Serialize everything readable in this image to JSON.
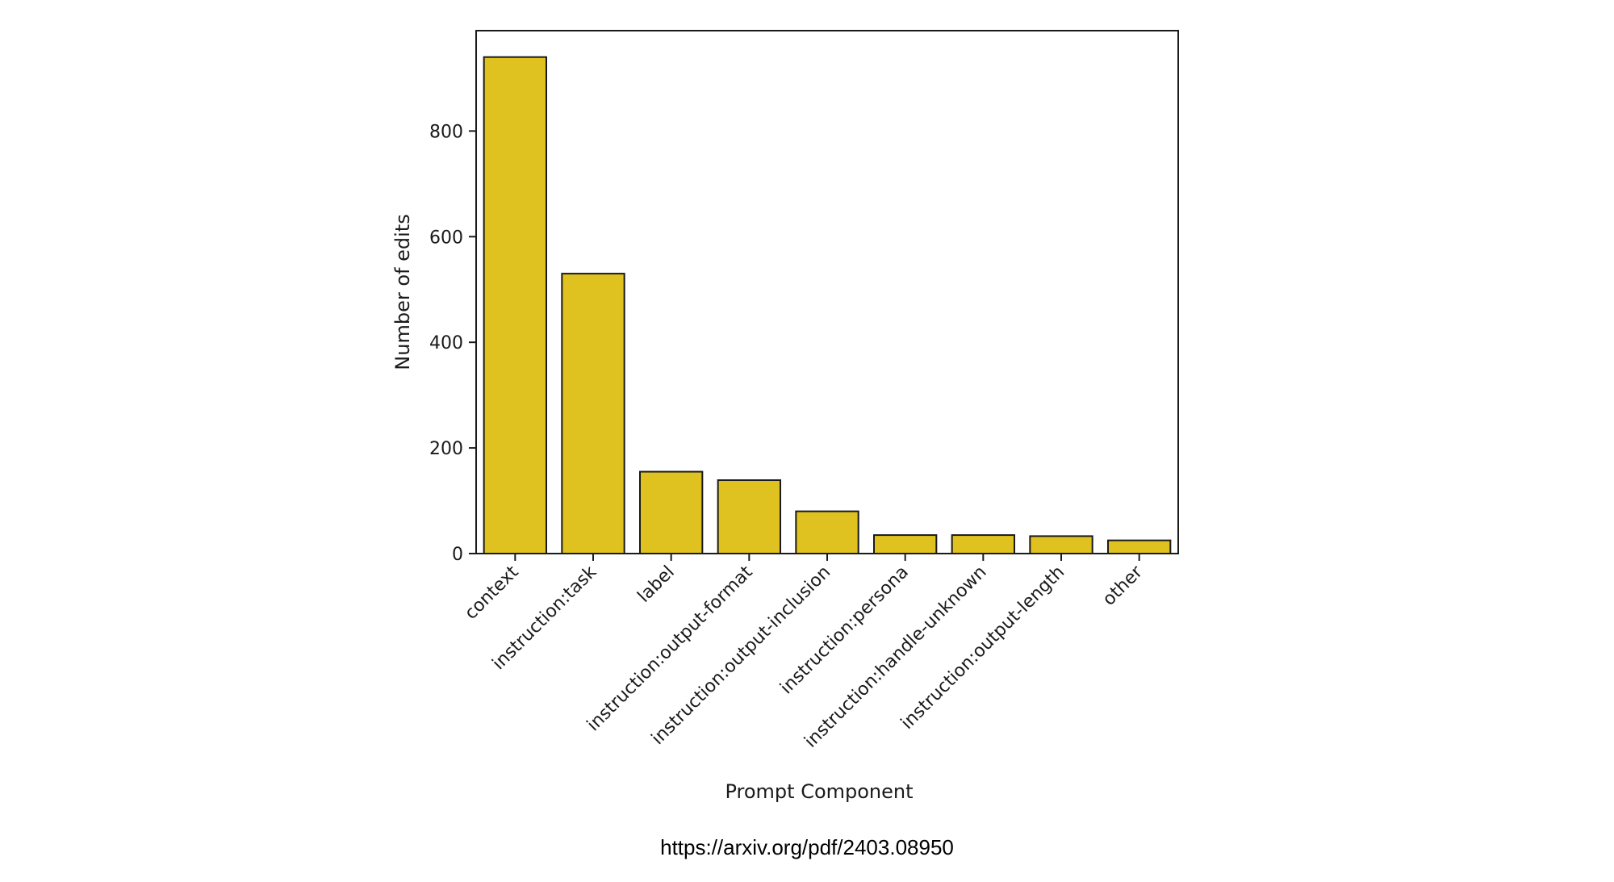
{
  "chart_data": {
    "type": "bar",
    "title": "",
    "xlabel": "Prompt Component",
    "ylabel": "Number of edits",
    "categories": [
      "context",
      "instruction:task",
      "label",
      "instruction:output-format",
      "instruction:output-inclusion",
      "instruction:persona",
      "instruction:handle-unknown",
      "instruction:output-length",
      "other"
    ],
    "values": [
      940,
      530,
      155,
      139,
      80,
      35,
      35,
      33,
      25
    ],
    "ylim": [
      0,
      990
    ],
    "yticks": [
      0,
      200,
      400,
      600,
      800
    ],
    "ytick_labels": [
      "0",
      "200",
      "400",
      "600",
      "800"
    ],
    "grid": false,
    "legend": "none",
    "bar_color": "#dfc21f",
    "bar_edge_color": "#1a1a1a"
  },
  "source_url": "https://arxiv.org/pdf/2403.08950"
}
